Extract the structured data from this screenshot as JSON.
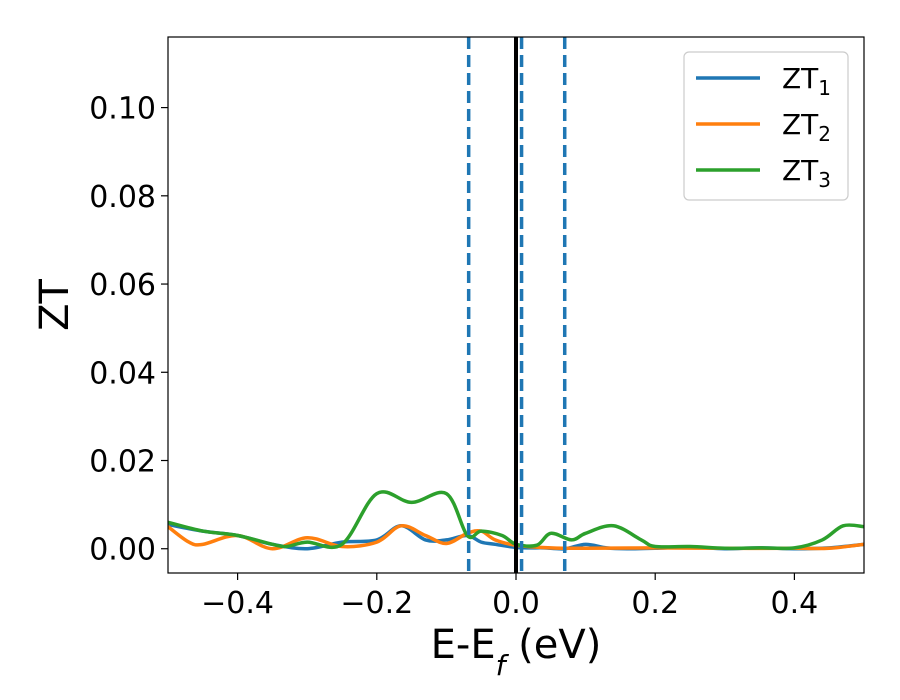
{
  "chart_data": {
    "type": "line",
    "xlabel_main": "E-E",
    "xlabel_sub": "f",
    "xlabel_unit": " (eV)",
    "ylabel": "ZT",
    "xlim": [
      -0.5,
      0.5
    ],
    "ylim": [
      -0.0055,
      0.116
    ],
    "x_ticks": [
      -0.4,
      -0.2,
      0.0,
      0.2,
      0.4
    ],
    "x_tick_labels": [
      "−0.4",
      "−0.2",
      "0.0",
      "0.2",
      "0.4"
    ],
    "y_ticks": [
      0.0,
      0.02,
      0.04,
      0.06,
      0.08,
      0.1
    ],
    "y_tick_labels": [
      "0.00",
      "0.02",
      "0.04",
      "0.06",
      "0.08",
      "0.10"
    ],
    "grid": false,
    "legend_position": "top-right",
    "vlines": {
      "solid": {
        "x": 0.0,
        "color": "#000000"
      },
      "dashed": {
        "x": [
          -0.068,
          0.008,
          0.07
        ],
        "color": "#1f77b4"
      }
    },
    "series": [
      {
        "name": "ZT",
        "name_sub": "1",
        "color": "#1f77b4",
        "x": [
          -0.5,
          -0.45,
          -0.4,
          -0.35,
          -0.3,
          -0.25,
          -0.2,
          -0.165,
          -0.13,
          -0.1,
          -0.07,
          -0.05,
          -0.03,
          0.0,
          0.02,
          0.04,
          0.07,
          0.1,
          0.13,
          0.16,
          0.2,
          0.25,
          0.3,
          0.35,
          0.4,
          0.45,
          0.5
        ],
        "y": [
          0.0055,
          0.004,
          0.003,
          0.001,
          0.0,
          0.0015,
          0.002,
          0.0052,
          0.002,
          0.002,
          0.003,
          0.0015,
          0.001,
          0.0003,
          0.0002,
          0.0002,
          0.0,
          0.001,
          0.0002,
          0.0,
          0.0001,
          0.0004,
          0.0,
          0.0002,
          0.0,
          0.0002,
          0.001
        ]
      },
      {
        "name": "ZT",
        "name_sub": "2",
        "color": "#ff7f0e",
        "x": [
          -0.5,
          -0.47,
          -0.45,
          -0.4,
          -0.35,
          -0.3,
          -0.25,
          -0.2,
          -0.165,
          -0.13,
          -0.1,
          -0.07,
          -0.05,
          -0.03,
          0.0,
          0.05,
          0.1,
          0.2,
          0.3,
          0.4,
          0.45,
          0.5
        ],
        "y": [
          0.005,
          0.0015,
          0.001,
          0.003,
          0.0,
          0.0025,
          0.0005,
          0.0015,
          0.0052,
          0.003,
          0.0012,
          0.0035,
          0.004,
          0.002,
          0.0008,
          0.0002,
          0.0001,
          0.0002,
          0.0001,
          0.0001,
          0.0001,
          0.001
        ]
      },
      {
        "name": "ZT",
        "name_sub": "3",
        "color": "#2ca02c",
        "x": [
          -0.5,
          -0.45,
          -0.4,
          -0.35,
          -0.33,
          -0.3,
          -0.25,
          -0.2,
          -0.15,
          -0.1,
          -0.07,
          -0.05,
          -0.02,
          0.0,
          0.03,
          0.05,
          0.08,
          0.1,
          0.14,
          0.18,
          0.2,
          0.25,
          0.3,
          0.35,
          0.4,
          0.44,
          0.47,
          0.5
        ],
        "y": [
          0.006,
          0.004,
          0.003,
          0.001,
          0.0005,
          0.0015,
          0.001,
          0.0125,
          0.0105,
          0.0125,
          0.003,
          0.004,
          0.003,
          0.001,
          0.0008,
          0.0035,
          0.002,
          0.0035,
          0.0052,
          0.002,
          0.0005,
          0.0005,
          0.0001,
          0.0002,
          0.0002,
          0.002,
          0.0052,
          0.005
        ]
      }
    ]
  }
}
